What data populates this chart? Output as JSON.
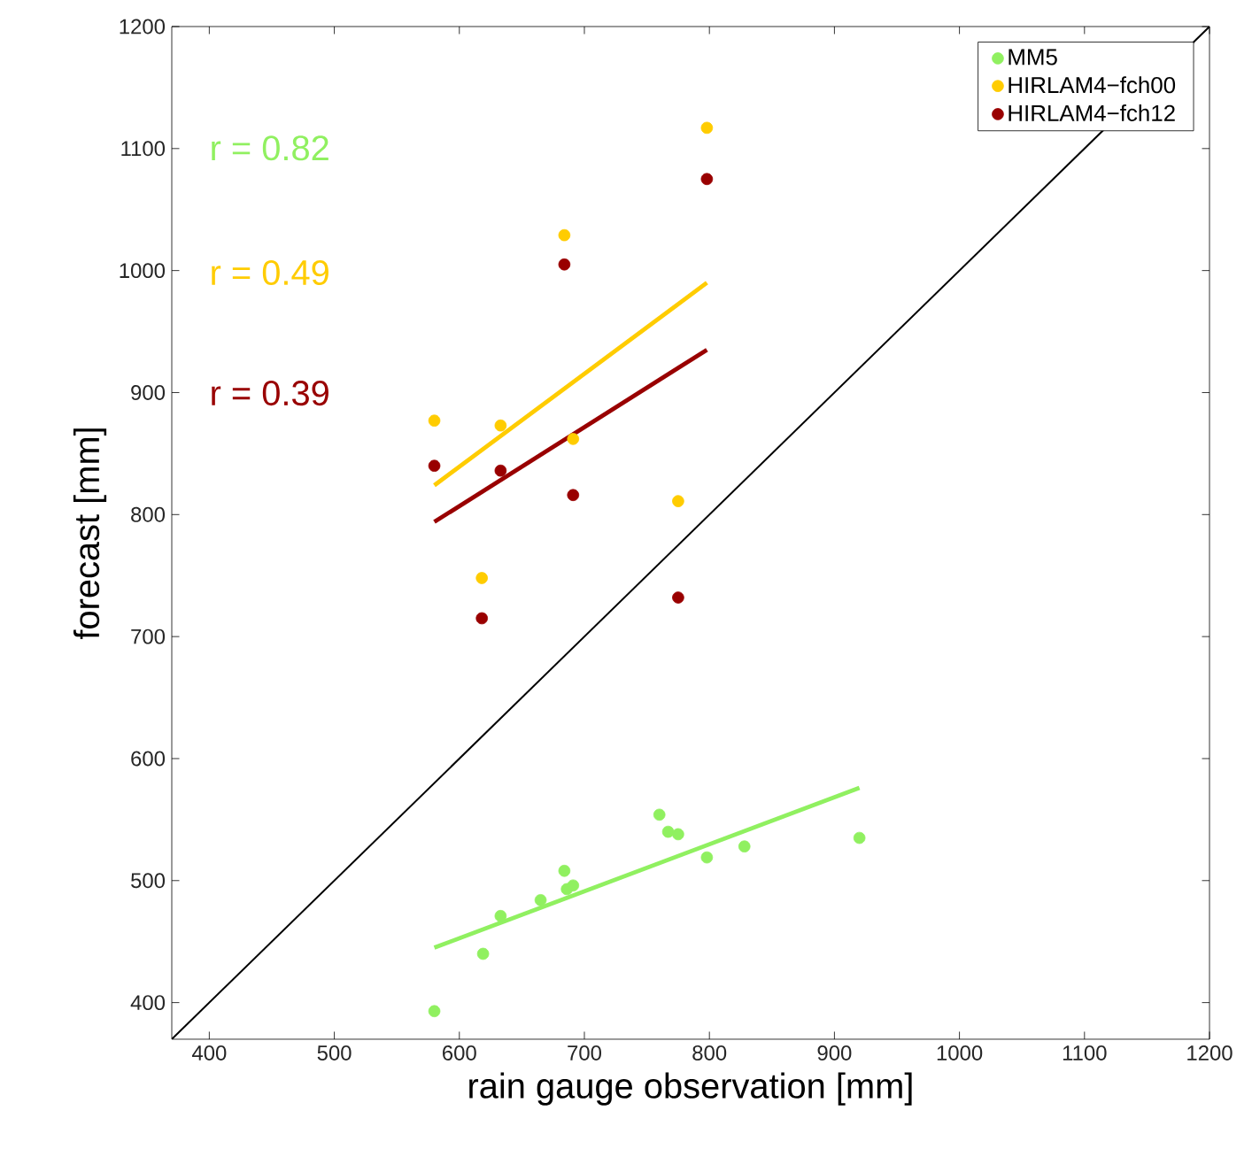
{
  "chart_data": {
    "type": "scatter",
    "xlabel": "rain gauge observation [mm]",
    "ylabel": "forecast [mm]",
    "xlim": [
      370,
      1200
    ],
    "ylim": [
      370,
      1200
    ],
    "xticks": [
      400,
      500,
      600,
      700,
      800,
      900,
      1000,
      1100,
      1200
    ],
    "yticks": [
      400,
      500,
      600,
      700,
      800,
      900,
      1000,
      1100,
      1200
    ],
    "grid": false,
    "legend": "top right",
    "annotations": [
      "r = 0.82",
      "r = 0.49",
      "r = 0.39"
    ],
    "series": [
      {
        "name": "MM5",
        "color": "#90f060",
        "marker": "circle",
        "x": [
          580,
          619,
          633,
          665,
          684,
          686,
          691,
          760,
          767,
          775,
          798,
          828,
          920
        ],
        "values": [
          393,
          440,
          471,
          484,
          508,
          493,
          496,
          554,
          540,
          538,
          519,
          528,
          535
        ]
      },
      {
        "name": "HIRLAM4−fch00",
        "color": "#ffcc00",
        "marker": "circle",
        "x": [
          580,
          618,
          633,
          684,
          691,
          775,
          798
        ],
        "values": [
          877,
          748,
          873,
          1029,
          862,
          811,
          1117
        ]
      },
      {
        "name": "HIRLAM4−fch12",
        "color": "#990000",
        "marker": "circle",
        "x": [
          580,
          618,
          633,
          684,
          691,
          775,
          798
        ],
        "values": [
          840,
          715,
          836,
          1005,
          816,
          732,
          1075
        ]
      },
      {
        "color": "#90f060",
        "type": "line",
        "marker": "none",
        "x": [
          580,
          920
        ],
        "values": [
          445,
          576
        ]
      },
      {
        "color": "#ffcc00",
        "type": "line",
        "marker": "none",
        "x": [
          580,
          798
        ],
        "values": [
          824,
          990
        ]
      },
      {
        "color": "#990000",
        "type": "line",
        "marker": "none",
        "x": [
          580,
          798
        ],
        "values": [
          794,
          935
        ]
      },
      {
        "color": "#000000",
        "type": "line",
        "marker": "none",
        "x": [
          370,
          1200
        ],
        "values": [
          370,
          1200
        ]
      }
    ]
  }
}
